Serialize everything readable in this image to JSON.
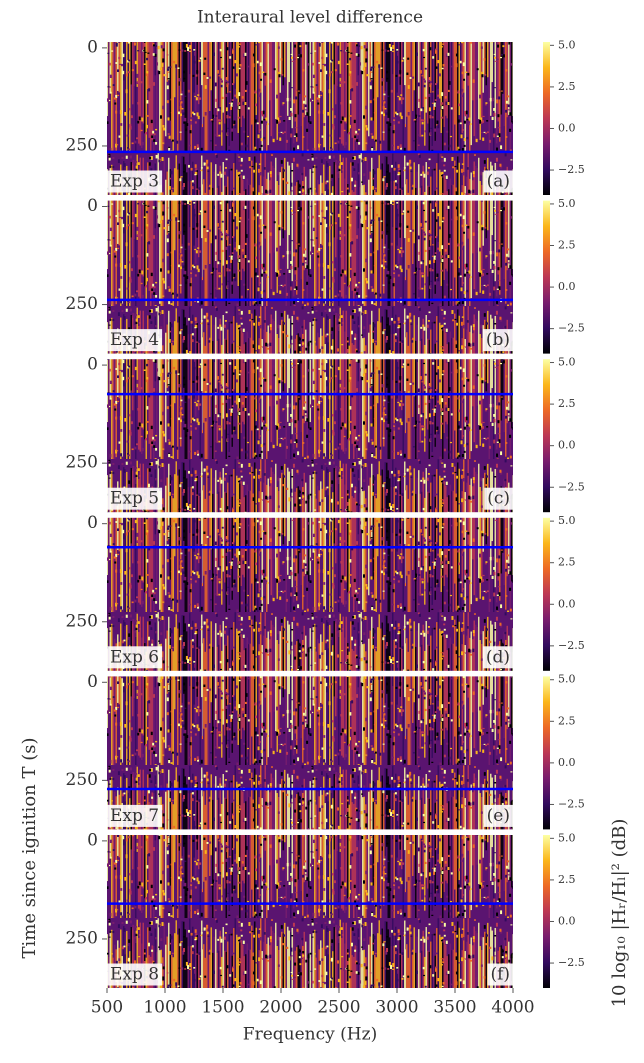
{
  "chart_data": [
    {
      "type": "heatmap",
      "title": "Interaural level difference",
      "label": "Exp 3",
      "panel": "(a)",
      "hline": 265,
      "hline_color": "#0000ff",
      "ylim": [
        375,
        -15
      ],
      "yticks": [
        0,
        250
      ],
      "clim": [
        -4,
        5.2
      ],
      "cticks": [
        {
          "value": 5,
          "label": "5.0"
        },
        2.5,
        {
          "value": 0,
          "label": "0.0"
        },
        {
          "value": -2.5,
          "label": "−2.5"
        }
      ],
      "colormap": "inferno"
    },
    {
      "type": "heatmap",
      "label": "Exp 4",
      "panel": "(b)",
      "hline": 238,
      "hline_color": "#0000ff",
      "ylim": [
        375,
        -15
      ],
      "yticks": [
        0,
        250
      ],
      "clim": [
        -4,
        5.2
      ],
      "cticks": [
        {
          "value": 5,
          "label": "5.0"
        },
        2.5,
        {
          "value": 0,
          "label": "0.0"
        },
        {
          "value": -2.5,
          "label": "−2.5"
        }
      ],
      "colormap": "inferno"
    },
    {
      "type": "heatmap",
      "label": "Exp 5",
      "panel": "(c)",
      "hline": 74,
      "hline_color": "#0000ff",
      "ylim": [
        375,
        -15
      ],
      "yticks": [
        0,
        250
      ],
      "clim": [
        -4,
        5.2
      ],
      "cticks": [
        {
          "value": 5,
          "label": "5.0"
        },
        2.5,
        {
          "value": 0,
          "label": "0.0"
        },
        {
          "value": -2.5,
          "label": "−2.5"
        }
      ],
      "colormap": "inferno"
    },
    {
      "type": "heatmap",
      "label": "Exp 6",
      "panel": "(d)",
      "hline": 60,
      "hline_color": "#0000ff",
      "ylim": [
        375,
        -15
      ],
      "yticks": [
        0,
        250
      ],
      "clim": [
        -4,
        5.2
      ],
      "cticks": [
        {
          "value": 5,
          "label": "5.0"
        },
        2.5,
        {
          "value": 0,
          "label": "0.0"
        },
        {
          "value": -2.5,
          "label": "−2.5"
        }
      ],
      "colormap": "inferno"
    },
    {
      "type": "heatmap",
      "label": "Exp 7",
      "panel": "(e)",
      "hline": 272,
      "hline_color": "#0000ff",
      "ylim": [
        375,
        -15
      ],
      "yticks": [
        0,
        250
      ],
      "clim": [
        -4,
        5.2
      ],
      "cticks": [
        {
          "value": 5,
          "label": "5.0"
        },
        2.5,
        {
          "value": 0,
          "label": "0.0"
        },
        {
          "value": -2.5,
          "label": "−2.5"
        }
      ],
      "colormap": "inferno"
    },
    {
      "type": "heatmap",
      "label": "Exp 8",
      "panel": "(f)",
      "hline": 160,
      "hline_color": "#0000ff",
      "ylim": [
        375,
        -15
      ],
      "yticks": [
        0,
        250
      ],
      "clim": [
        -4,
        5.2
      ],
      "cticks": [
        {
          "value": 5,
          "label": "5.0"
        },
        2.5,
        {
          "value": 0,
          "label": "0.0"
        },
        {
          "value": -2.5,
          "label": "−2.5"
        }
      ],
      "colormap": "inferno",
      "xlabel": "Frequency (Hz)",
      "ylabel": "Time since ignition T (s)",
      "clabel": "10 log₁₀ |Hᵣ/Hₗ|² (dB)",
      "xlim": [
        500,
        4000
      ],
      "xticks": [
        500,
        1000,
        1500,
        2000,
        2500,
        3000,
        3500,
        4000
      ]
    }
  ]
}
